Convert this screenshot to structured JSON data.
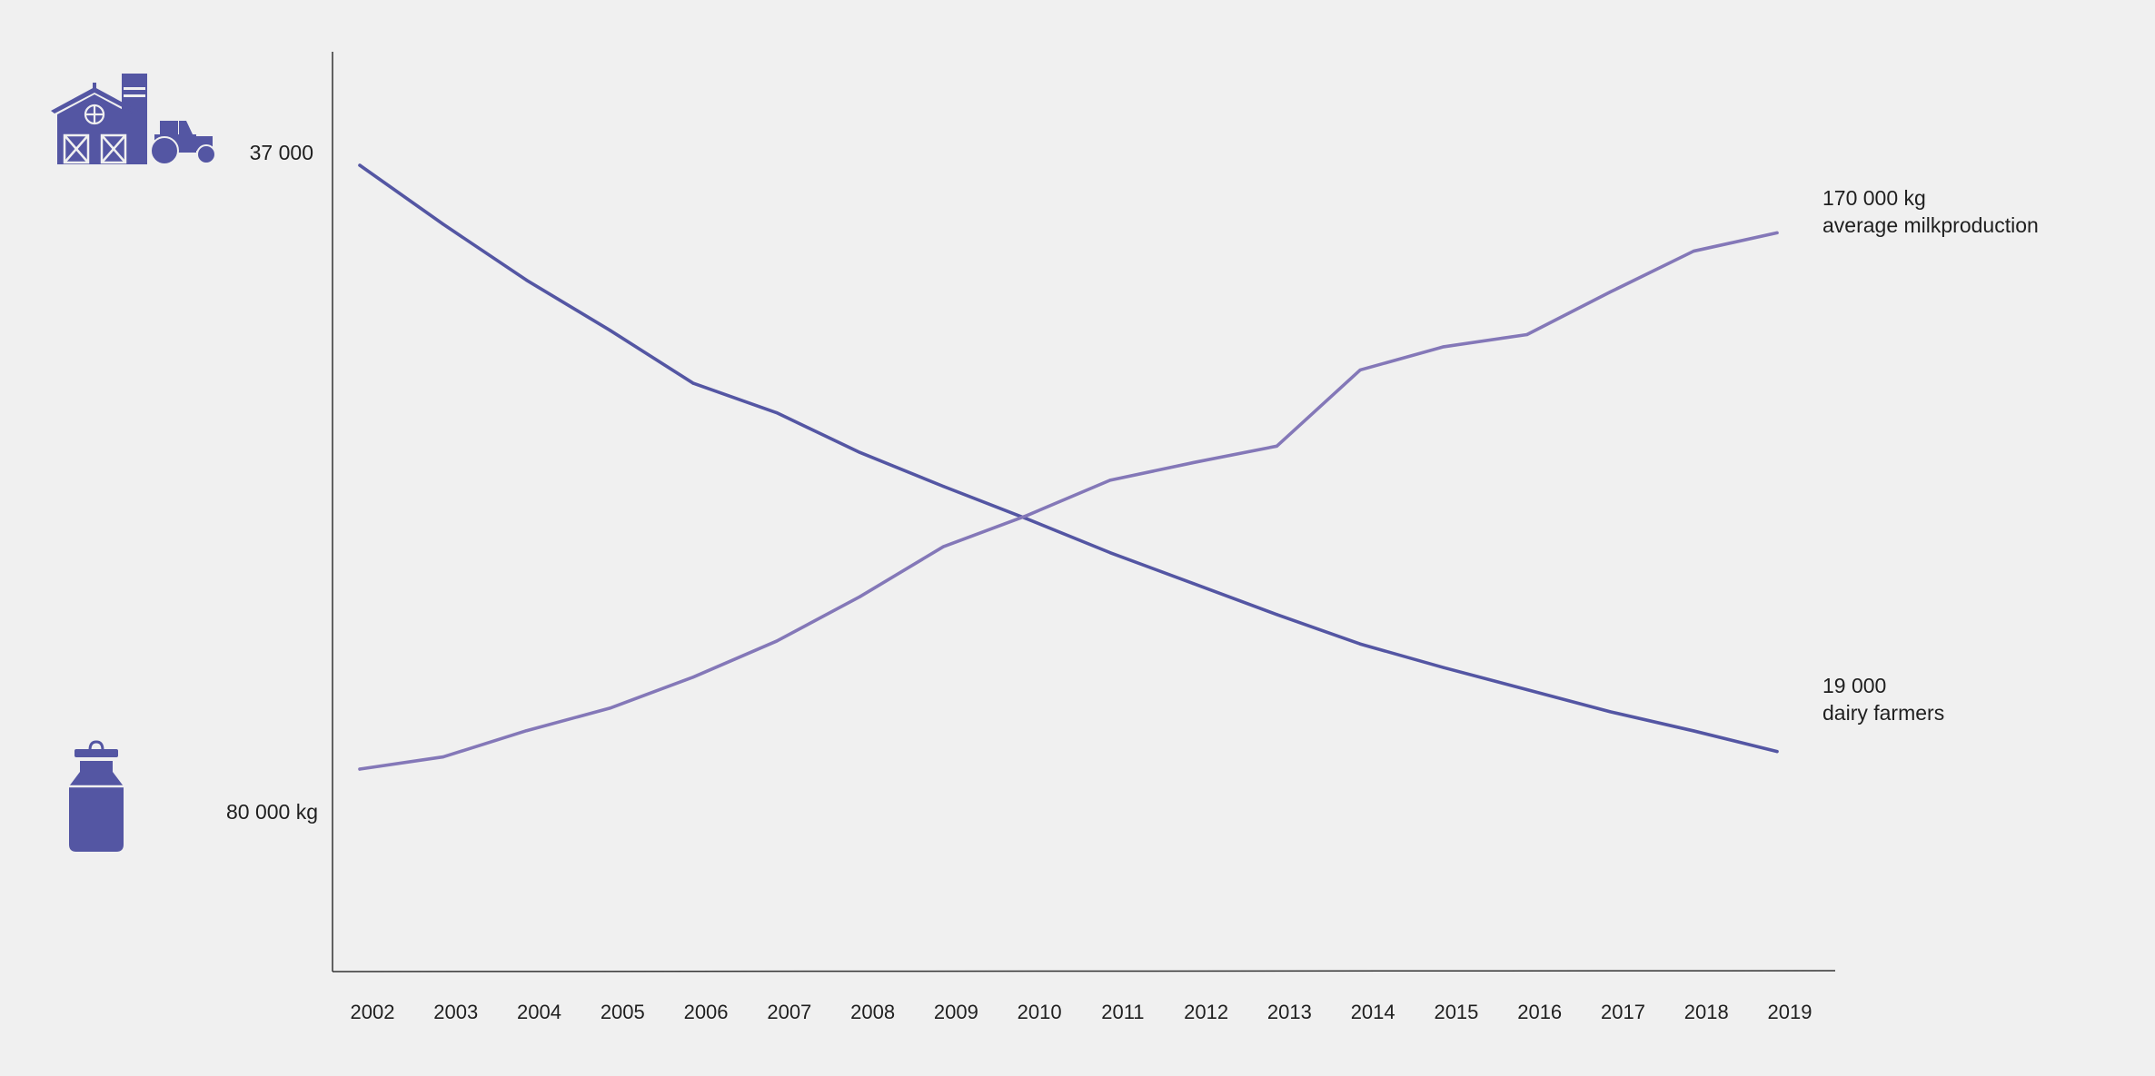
{
  "chart_data": {
    "type": "line",
    "x": [
      2002,
      2003,
      2004,
      2005,
      2006,
      2007,
      2008,
      2009,
      2010,
      2011,
      2012,
      2013,
      2014,
      2015,
      2016,
      2017,
      2018,
      2019
    ],
    "tick_labels": [
      "2002",
      "2003",
      "2004",
      "2005",
      "2006",
      "2007",
      "2008",
      "2009",
      "2010",
      "2011",
      "2012",
      "2013",
      "2014",
      "2015",
      "2016",
      "2017",
      "2018",
      "2019"
    ],
    "series": [
      {
        "name": "dairy farmers",
        "axis": "farmers",
        "color": "#5456a3",
        "values": [
          37000,
          35000,
          33100,
          31400,
          29600,
          28600,
          27250,
          26100,
          25000,
          23850,
          22800,
          21750,
          20750,
          19950,
          19200,
          18450,
          17800,
          17100
        ]
      },
      {
        "name": "average milkproduction",
        "axis": "milk",
        "color": "#8478b8",
        "values": [
          80000,
          82000,
          86300,
          90000,
          95100,
          101000,
          108300,
          116500,
          121600,
          127400,
          130300,
          133000,
          145500,
          149300,
          151300,
          158300,
          165000,
          168000
        ]
      }
    ],
    "axes": {
      "farmers": {
        "range": [
          37000,
          19000
        ],
        "label": "37 000"
      },
      "milk": {
        "range": [
          80000,
          170000
        ],
        "label": "80 000 kg"
      }
    },
    "end_labels": {
      "milk": [
        "170 000 kg",
        "average milkproduction"
      ],
      "farmers": [
        "19 000",
        "dairy farmers"
      ]
    },
    "grid": false,
    "legend": "none"
  },
  "icons": {
    "farm": "farm-barn-tractor-icon",
    "milk": "milk-can-icon"
  },
  "colors": {
    "icon": "#5456a3",
    "axis": "#333333",
    "background": "#f0f0f0"
  }
}
